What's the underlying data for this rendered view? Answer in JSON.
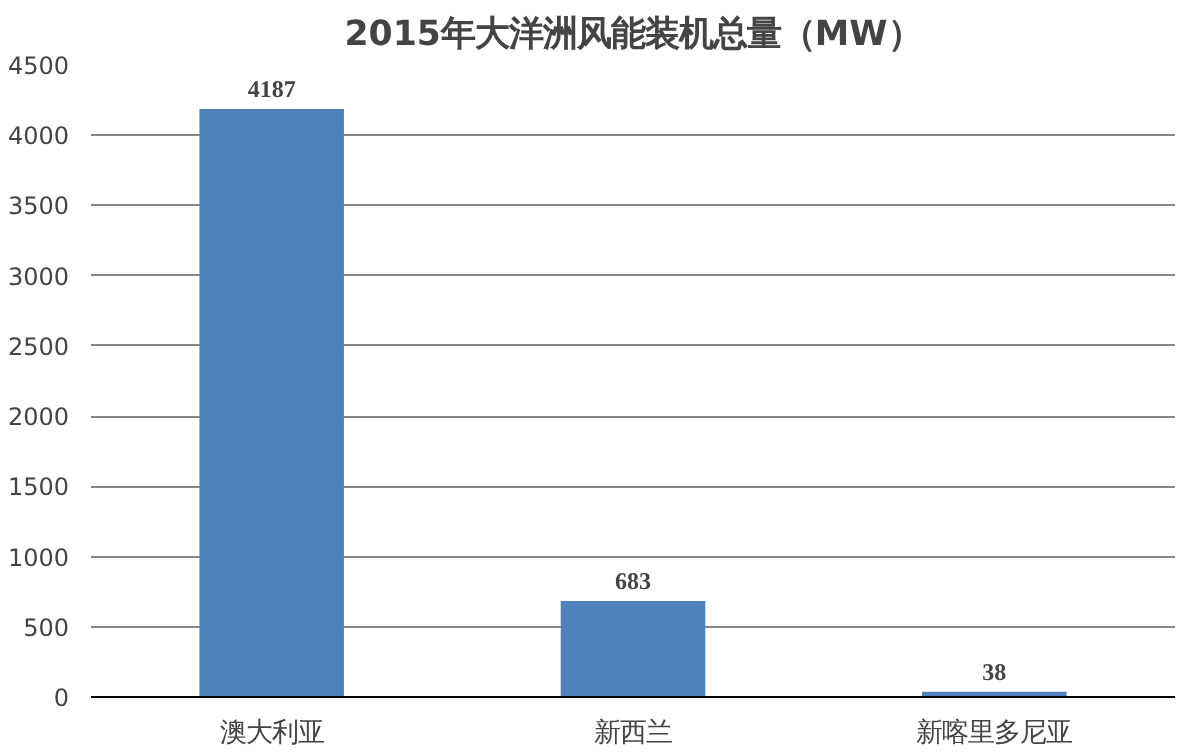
{
  "chart_data": {
    "type": "bar",
    "title": "2015年大洋洲风能装机总量（MW）",
    "categories": [
      "澳大利亚",
      "新西兰",
      "新喀里多尼亚"
    ],
    "values": [
      4187,
      683,
      38
    ],
    "color": "#4f81bd",
    "ylim": [
      0,
      4500
    ],
    "yticks": [
      0,
      500,
      1000,
      1500,
      2000,
      2500,
      3000,
      3500,
      4000,
      4500
    ],
    "grid": "y",
    "data_labels": true
  }
}
